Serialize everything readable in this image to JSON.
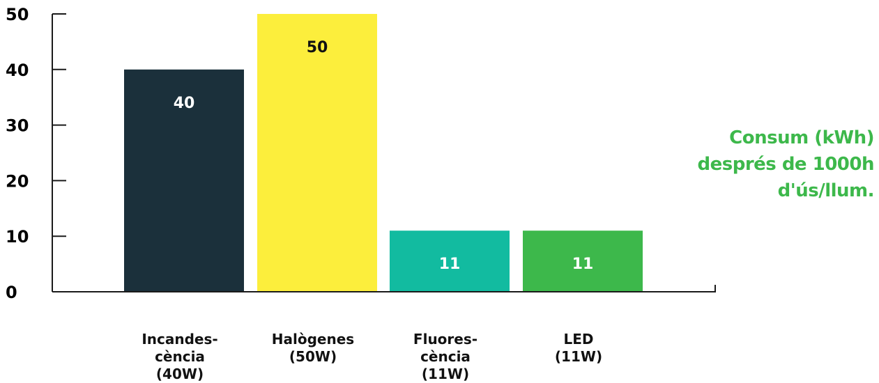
{
  "colors": {
    "axis": "#1a1a1a",
    "title": "#3db84b",
    "value_label_dark_bg": "#ffffff",
    "value_label_light_bg": "#111111"
  },
  "chart_data": {
    "type": "bar",
    "title_lines": [
      "Consum (kWh)",
      "després de 1000h",
      "d'ús/llum."
    ],
    "xlabel": "",
    "ylabel": "",
    "ylim": [
      0,
      50
    ],
    "yticks": [
      0,
      10,
      20,
      30,
      40,
      50
    ],
    "grid": false,
    "categories": [
      {
        "label_lines": [
          "Incandes-",
          "cència",
          "(40W)"
        ],
        "value": 40,
        "color": "#1b303b",
        "label_color": "#ffffff"
      },
      {
        "label_lines": [
          "Halògenes",
          "(50W)"
        ],
        "value": 50,
        "color": "#fcee3c",
        "label_color": "#111111"
      },
      {
        "label_lines": [
          "Fluores-",
          "cència",
          "(11W)"
        ],
        "value": 11,
        "color": "#12bba0",
        "label_color": "#ffffff"
      },
      {
        "label_lines": [
          "LED",
          "(11W)"
        ],
        "value": 11,
        "color": "#3db84b",
        "label_color": "#ffffff"
      }
    ]
  }
}
